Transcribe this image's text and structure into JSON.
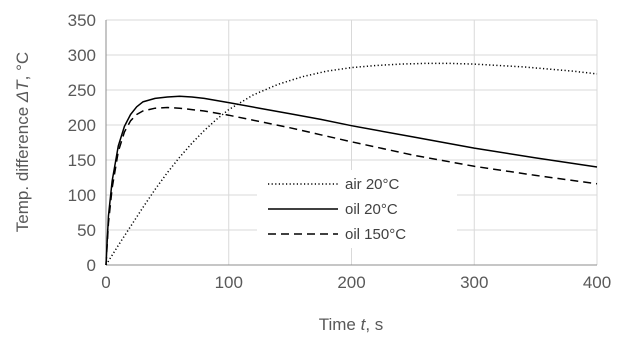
{
  "chart_data": {
    "type": "line",
    "title": "",
    "xlabel_prefix": "Time ",
    "xlabel_var": "t",
    "xlabel_suffix": ", s",
    "ylabel_prefix": "Temp. difference ",
    "ylabel_var": "ΔT",
    "ylabel_suffix": ", °C",
    "xlim": [
      0,
      400
    ],
    "ylim": [
      0,
      350
    ],
    "xticks": [
      0,
      100,
      200,
      300,
      400
    ],
    "yticks": [
      0,
      50,
      100,
      150,
      200,
      250,
      300,
      350
    ],
    "grid": true,
    "legend_position": "center-left",
    "series": [
      {
        "name": "air 20°C",
        "style": "dotted",
        "color": "#000000",
        "points": [
          [
            0,
            0
          ],
          [
            10,
            28
          ],
          [
            20,
            55
          ],
          [
            30,
            82
          ],
          [
            40,
            108
          ],
          [
            50,
            132
          ],
          [
            60,
            154
          ],
          [
            70,
            174
          ],
          [
            80,
            192
          ],
          [
            90,
            208
          ],
          [
            100,
            222
          ],
          [
            120,
            243
          ],
          [
            140,
            258
          ],
          [
            160,
            269
          ],
          [
            180,
            277
          ],
          [
            200,
            282
          ],
          [
            220,
            285
          ],
          [
            240,
            287
          ],
          [
            260,
            288
          ],
          [
            280,
            288
          ],
          [
            300,
            287
          ],
          [
            320,
            285
          ],
          [
            340,
            283
          ],
          [
            360,
            280
          ],
          [
            380,
            277
          ],
          [
            400,
            273
          ]
        ]
      },
      {
        "name": "oil 20°C",
        "style": "solid",
        "color": "#000000",
        "points": [
          [
            0,
            0
          ],
          [
            2,
            70
          ],
          [
            5,
            120
          ],
          [
            10,
            170
          ],
          [
            15,
            198
          ],
          [
            20,
            215
          ],
          [
            25,
            226
          ],
          [
            30,
            233
          ],
          [
            40,
            238
          ],
          [
            50,
            240
          ],
          [
            60,
            241
          ],
          [
            70,
            240
          ],
          [
            80,
            238
          ],
          [
            100,
            232
          ],
          [
            125,
            224
          ],
          [
            150,
            216
          ],
          [
            175,
            208
          ],
          [
            200,
            199
          ],
          [
            250,
            183
          ],
          [
            300,
            167
          ],
          [
            350,
            153
          ],
          [
            400,
            140
          ]
        ]
      },
      {
        "name": "oil 150°C",
        "style": "dashed",
        "color": "#000000",
        "points": [
          [
            0,
            0
          ],
          [
            2,
            60
          ],
          [
            5,
            110
          ],
          [
            10,
            162
          ],
          [
            15,
            190
          ],
          [
            20,
            206
          ],
          [
            25,
            215
          ],
          [
            30,
            220
          ],
          [
            40,
            224
          ],
          [
            50,
            225
          ],
          [
            60,
            224
          ],
          [
            70,
            222
          ],
          [
            80,
            220
          ],
          [
            100,
            214
          ],
          [
            125,
            205
          ],
          [
            150,
            196
          ],
          [
            175,
            186
          ],
          [
            200,
            176
          ],
          [
            250,
            157
          ],
          [
            300,
            141
          ],
          [
            350,
            128
          ],
          [
            400,
            116
          ]
        ]
      }
    ]
  }
}
